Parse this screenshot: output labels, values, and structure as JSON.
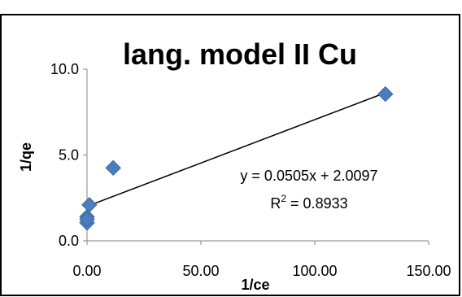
{
  "chart_data": {
    "type": "scatter",
    "title": "lang. model II Cu",
    "xlabel": "1/ce",
    "ylabel": "1/qe",
    "xlim": [
      0,
      150
    ],
    "ylim": [
      0,
      10
    ],
    "xticks": [
      "0.00",
      "50.00",
      "100.00",
      "150.00"
    ],
    "yticks": [
      "0.0",
      "5.0",
      "10.0"
    ],
    "series": [
      {
        "x": [
          0.0,
          0.0,
          0.0,
          1.0,
          11.5,
          131.0
        ],
        "y": [
          1.05,
          1.4,
          1.25,
          2.1,
          4.25,
          8.55
        ]
      }
    ],
    "trendline": {
      "type": "linear",
      "slope": 0.0505,
      "intercept": 2.0097
    },
    "annotations": {
      "equation": "y = 0.0505x + 2.0097",
      "r2_label": "R",
      "r2_sup": "2",
      "r2_value": " = 0.8933"
    },
    "grid": false,
    "legend": "none",
    "colors": {
      "marker": "#4a7ebb",
      "trendline": "#000000",
      "border": "#000000"
    }
  }
}
